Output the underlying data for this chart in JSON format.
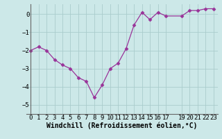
{
  "x": [
    0,
    1,
    2,
    3,
    4,
    5,
    6,
    7,
    8,
    9,
    10,
    11,
    12,
    13,
    14,
    15,
    16,
    17,
    19,
    20,
    21,
    22,
    23
  ],
  "y": [
    -2.0,
    -1.8,
    -2.0,
    -2.5,
    -2.8,
    -3.0,
    -3.5,
    -3.7,
    -4.6,
    -3.9,
    -3.0,
    -2.7,
    -1.9,
    -0.6,
    0.1,
    -0.3,
    0.1,
    -0.1,
    -0.1,
    0.2,
    0.2,
    0.3,
    0.3
  ],
  "line_color": "#993399",
  "marker": "D",
  "marker_size": 2.5,
  "bg_color": "#cce8e8",
  "grid_color": "#aacccc",
  "xlabel": "Windchill (Refroidissement éolien,°C)",
  "xlabel_fontsize": 7,
  "tick_fontsize": 6.5,
  "ylim": [
    -5.5,
    0.55
  ],
  "xlim": [
    -0.5,
    23.5
  ],
  "yticks": [
    0,
    -1,
    -2,
    -3,
    -4,
    -5
  ],
  "xticks": [
    0,
    1,
    2,
    3,
    4,
    5,
    6,
    7,
    8,
    9,
    10,
    11,
    12,
    13,
    14,
    15,
    16,
    17,
    19,
    20,
    21,
    22,
    23
  ]
}
